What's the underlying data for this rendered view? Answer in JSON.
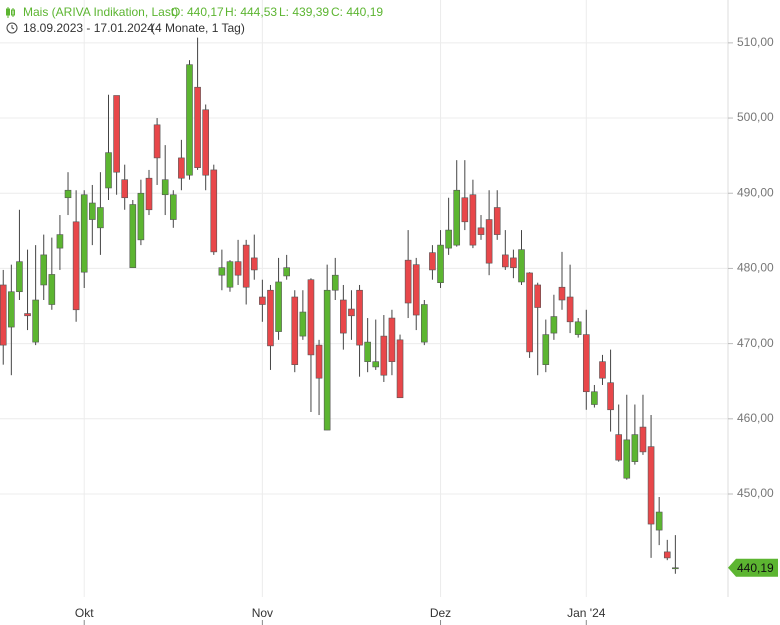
{
  "chart_data": {
    "type": "candlestick",
    "title": "Mais (ARIVA Indikation, Last)",
    "ohlc_labels": [
      "O: 440,17",
      "H: 444,53",
      "L: 439,39",
      "C: 440,19"
    ],
    "date_range": "18.09.2023 - 17.01.2024",
    "period": "(4 Monate, 1 Tag)",
    "up_color": "#5cb531",
    "down_color": "#e8474a",
    "xlim": [
      -0.4,
      89.5
    ],
    "xticks": [
      {
        "value": 10,
        "label": "Okt"
      },
      {
        "value": 32,
        "label": "Nov"
      },
      {
        "value": 54,
        "label": "Dez"
      },
      {
        "value": 72,
        "label": "Jan '24"
      }
    ],
    "ylim": [
      436.3,
      515.7
    ],
    "yticks": [
      {
        "value": 450,
        "label": "450,00"
      },
      {
        "value": 460,
        "label": "460,00"
      },
      {
        "value": 470,
        "label": "470,00"
      },
      {
        "value": 480,
        "label": "480,00"
      },
      {
        "value": 490,
        "label": "490,00"
      },
      {
        "value": 500,
        "label": "500,00"
      },
      {
        "value": 510,
        "label": "510,00"
      }
    ],
    "grid": true,
    "open": [
      477.8,
      472.2,
      476.9,
      474.0,
      470.2,
      477.8,
      475.2,
      482.7,
      489.4,
      486.2,
      479.5,
      486.5,
      485.4,
      490.7,
      503.0,
      491.8,
      480.1,
      483.8,
      492.0,
      499.1,
      489.8,
      486.5,
      494.7,
      492.4,
      504.1,
      501.1,
      493.1,
      479.1,
      477.5,
      480.9,
      483.1,
      481.4,
      476.2,
      477.1,
      471.6,
      479.0,
      476.2,
      471.0,
      478.5,
      469.8,
      458.5,
      477.1,
      475.8,
      474.6,
      477.1,
      467.6,
      466.9,
      471.0,
      473.4,
      470.5,
      481.1,
      480.5,
      470.2,
      482.1,
      478.1,
      482.7,
      483.1,
      489.4,
      489.8,
      485.4,
      486.5,
      488.1,
      481.8,
      481.4,
      478.2,
      479.4,
      477.8,
      467.2,
      471.4,
      477.5,
      476.2,
      471.2,
      471.2,
      461.9,
      467.6,
      464.8,
      457.9,
      452.1,
      454.3,
      458.9,
      456.3,
      445.2,
      442.3,
      440.17
    ],
    "high": [
      479.8,
      480.5,
      487.8,
      482.5,
      483.1,
      484.5,
      484.1,
      487.1,
      492.8,
      490.4,
      490.4,
      491.1,
      492.8,
      503.1,
      503.0,
      493.8,
      489.1,
      491.8,
      493.1,
      500.0,
      496.4,
      490.4,
      497.1,
      507.7,
      510.7,
      501.8,
      493.8,
      482.5,
      481.1,
      483.8,
      483.8,
      484.5,
      478.5,
      477.8,
      481.4,
      481.8,
      477.1,
      477.1,
      478.7,
      470.5,
      480.5,
      481.4,
      477.8,
      477.1,
      477.8,
      473.4,
      473.2,
      473.8,
      474.5,
      471.2,
      485.1,
      481.4,
      475.8,
      483.1,
      485.1,
      489.4,
      494.4,
      494.4,
      491.8,
      487.1,
      490.4,
      490.4,
      485.1,
      482.5,
      485.1,
      479.5,
      478.1,
      473.2,
      476.5,
      482.2,
      480.5,
      473.4,
      474.5,
      464.5,
      468.5,
      469.2,
      461.9,
      463.2,
      461.9,
      463.2,
      460.5,
      449.6,
      443.9,
      444.53
    ],
    "low": [
      467.2,
      465.8,
      475.8,
      471.8,
      469.8,
      475.8,
      474.5,
      479.8,
      487.1,
      472.9,
      477.4,
      483.1,
      481.8,
      489.1,
      489.8,
      487.8,
      480.1,
      483.1,
      487.1,
      491.1,
      487.1,
      485.4,
      490.4,
      491.8,
      493.1,
      490.4,
      481.8,
      477.1,
      476.9,
      477.8,
      475.2,
      478.5,
      472.9,
      466.5,
      470.5,
      478.5,
      466.2,
      470.5,
      460.9,
      460.5,
      458.5,
      475.8,
      469.2,
      470.5,
      465.6,
      466.2,
      466.5,
      464.9,
      465.8,
      462.8,
      473.4,
      471.8,
      469.8,
      478.5,
      477.4,
      481.8,
      482.9,
      485.1,
      482.7,
      483.8,
      479.1,
      483.8,
      479.8,
      478.7,
      477.8,
      468.1,
      465.8,
      466.2,
      470.5,
      474.5,
      471.4,
      470.8,
      461.2,
      461.5,
      464.5,
      458.3,
      454.3,
      451.9,
      453.9,
      455.2,
      441.5,
      443.2,
      441.2,
      439.39
    ],
    "close": [
      469.8,
      476.9,
      480.9,
      473.7,
      475.8,
      481.8,
      479.2,
      484.5,
      490.4,
      474.5,
      489.8,
      488.7,
      488.1,
      495.4,
      492.8,
      489.4,
      488.5,
      490.0,
      487.8,
      494.7,
      491.8,
      489.8,
      492.0,
      507.1,
      493.4,
      492.4,
      482.2,
      480.1,
      480.9,
      479.1,
      477.5,
      479.8,
      475.2,
      469.7,
      478.2,
      480.1,
      467.2,
      474.2,
      468.5,
      465.4,
      477.1,
      479.1,
      471.4,
      473.7,
      469.8,
      470.2,
      467.6,
      465.8,
      467.6,
      462.8,
      475.4,
      473.8,
      475.2,
      479.8,
      483.1,
      485.1,
      490.4,
      486.2,
      483.1,
      484.5,
      480.7,
      484.5,
      480.2,
      480.1,
      482.5,
      468.9,
      474.8,
      471.2,
      473.6,
      475.8,
      472.9,
      472.9,
      463.6,
      463.6,
      465.4,
      461.2,
      454.5,
      457.2,
      457.9,
      455.6,
      446.0,
      447.6,
      441.5,
      440.19
    ],
    "last_price": {
      "value": 440.19,
      "label": "440,19"
    }
  }
}
